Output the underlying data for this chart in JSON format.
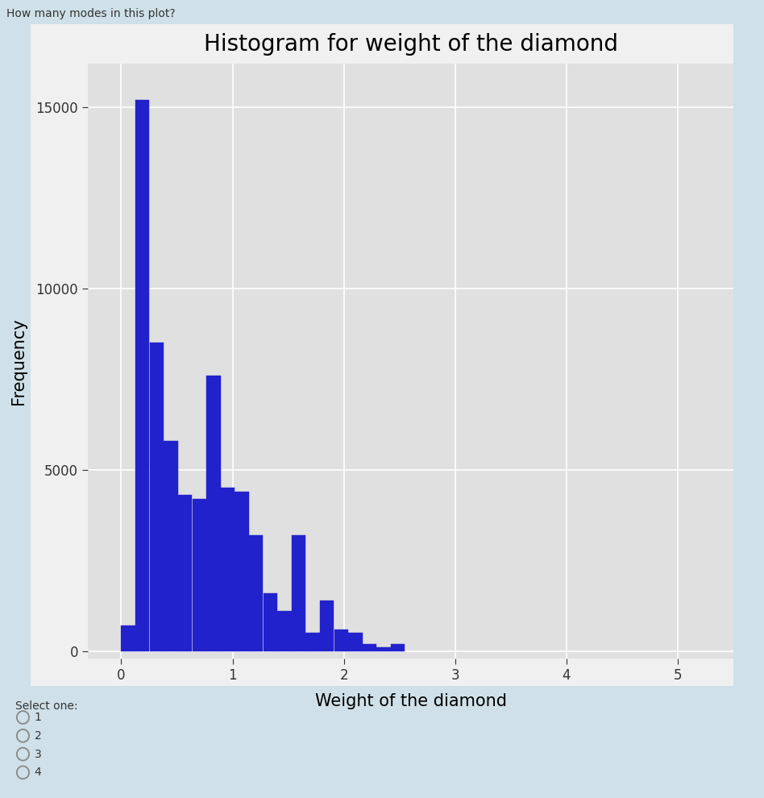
{
  "title": "Histogram for weight of the diamond",
  "xlabel": "Weight of the diamond",
  "ylabel": "Frequency",
  "bar_color": "#2222cc",
  "bar_edgecolor": "#2222cc",
  "background_color": "#cfe0e8",
  "plot_bg_color": "#e0e0e0",
  "plot_outer_color": "#f0f0f0",
  "bar_heights": [
    700,
    15200,
    8500,
    5800,
    4300,
    4200,
    7600,
    4500,
    4400,
    3200,
    1600,
    1100,
    3200,
    500,
    1400,
    600,
    500,
    200,
    100,
    200
  ],
  "bin_start": 0.0,
  "bin_width": 0.1275,
  "xlim": [
    -0.3,
    5.5
  ],
  "ylim": [
    -200,
    16200
  ],
  "xticks": [
    0,
    1,
    2,
    3,
    4,
    5
  ],
  "yticks": [
    0,
    5000,
    10000,
    15000
  ],
  "question_text": "How many modes in this plot?",
  "select_text": "Select one:",
  "options": [
    "1",
    "2",
    "3",
    "4"
  ],
  "title_fontsize": 20,
  "axis_label_fontsize": 15,
  "tick_fontsize": 12,
  "question_fontsize": 10
}
